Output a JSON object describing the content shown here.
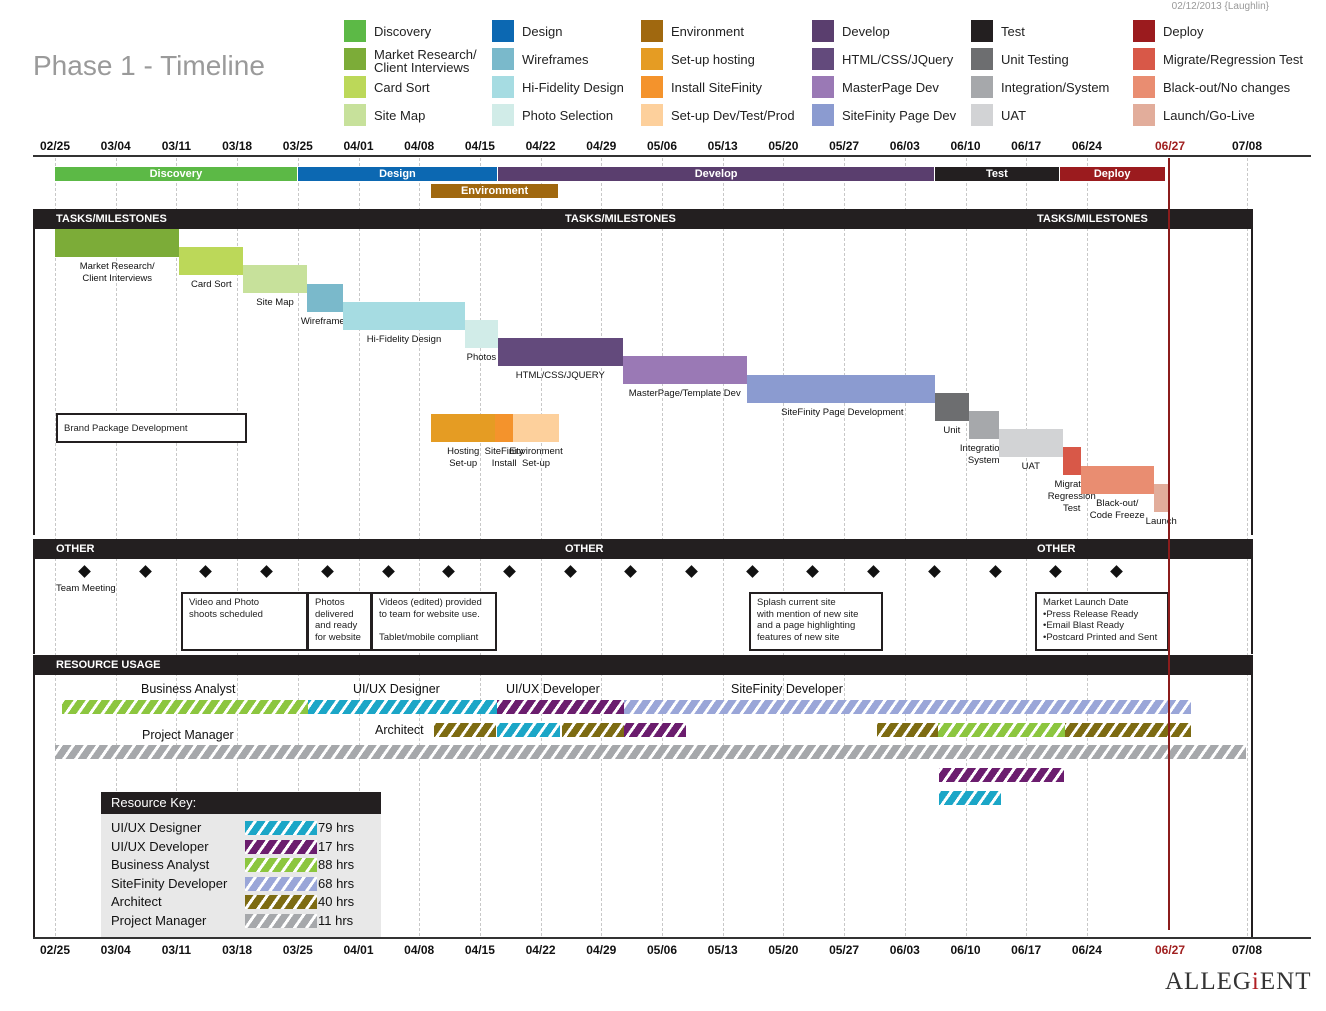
{
  "title": "Phase 1 - Timeline",
  "meta": "02/12/2013 {Laughlin}",
  "colors": {
    "discovery": "#5cb946",
    "market_research": "#7cac38",
    "card_sort": "#bcd859",
    "site_map": "#c7e19b",
    "design": "#0c68b2",
    "wireframes": "#7ab9cb",
    "hifi": "#a6dce2",
    "photo_sel": "#d1ece8",
    "environment": "#a0680f",
    "setup_hosting": "#e59c23",
    "install_sitefinity": "#f4932c",
    "setup_dev": "#fdd09c",
    "develop": "#5a3e6e",
    "html": "#634a7c",
    "masterpage": "#9a79b5",
    "sitefinity_page": "#8b9bd0",
    "test": "#231f20",
    "unit": "#6d6e70",
    "integration": "#a6a8ab",
    "uat": "#d2d3d5",
    "deploy": "#9b1b1e",
    "migrate": "#d85848",
    "blackout": "#e98d71",
    "launch": "#e2ad9b",
    "today_line": "#8b1c1c"
  },
  "legend": [
    {
      "label": "Discovery",
      "color": "discovery"
    },
    {
      "label": "Market Research/\nClient Interviews",
      "color": "market_research"
    },
    {
      "label": "Card Sort",
      "color": "card_sort"
    },
    {
      "label": "Site Map",
      "color": "site_map"
    },
    {
      "label": "Design",
      "color": "design"
    },
    {
      "label": "Wireframes",
      "color": "wireframes"
    },
    {
      "label": "Hi-Fidelity Design",
      "color": "hifi"
    },
    {
      "label": "Photo Selection",
      "color": "photo_sel"
    },
    {
      "label": "Environment",
      "color": "environment"
    },
    {
      "label": "Set-up hosting",
      "color": "setup_hosting"
    },
    {
      "label": "Install SiteFinity",
      "color": "install_sitefinity"
    },
    {
      "label": "Set-up Dev/Test/Prod",
      "color": "setup_dev"
    },
    {
      "label": "Develop",
      "color": "develop"
    },
    {
      "label": "HTML/CSS/JQuery",
      "color": "html"
    },
    {
      "label": "MasterPage Dev",
      "color": "masterpage"
    },
    {
      "label": "SiteFinity Page Dev",
      "color": "sitefinity_page"
    },
    {
      "label": "Test",
      "color": "test"
    },
    {
      "label": "Unit Testing",
      "color": "unit"
    },
    {
      "label": "Integration/System",
      "color": "integration"
    },
    {
      "label": "UAT",
      "color": "uat"
    },
    {
      "label": "Deploy",
      "color": "deploy"
    },
    {
      "label": "Migrate/Regression Test",
      "color": "migrate"
    },
    {
      "label": "Black-out/No changes",
      "color": "blackout"
    },
    {
      "label": "Launch/Go-Live",
      "color": "launch"
    }
  ],
  "dates": [
    "02/25",
    "03/04",
    "03/11",
    "03/18",
    "03/25",
    "04/01",
    "04/08",
    "04/15",
    "04/22",
    "04/29",
    "05/06",
    "05/13",
    "05/20",
    "05/27",
    "06/03",
    "06/10",
    "06/17",
    "06/24",
    "06/27",
    "07/08"
  ],
  "highlight_date": "06/27",
  "phases": [
    {
      "label": "Discovery",
      "start": 0,
      "end": 4,
      "color": "discovery",
      "row": 0
    },
    {
      "label": "Design",
      "start": 4,
      "end": 7.3,
      "color": "design",
      "row": 0
    },
    {
      "label": "Develop",
      "start": 7.3,
      "end": 14.5,
      "color": "develop",
      "row": 0
    },
    {
      "label": "Test",
      "start": 14.5,
      "end": 16.55,
      "color": "test",
      "row": 0
    },
    {
      "label": "Deploy",
      "start": 16.55,
      "end": 18.3,
      "color": "deploy",
      "row": 0
    },
    {
      "label": "Environment",
      "start": 6.2,
      "end": 8.3,
      "color": "environment",
      "row": 1
    }
  ],
  "sections": {
    "tasks": "TASKS/MILESTONES",
    "other": "OTHER",
    "resource": "RESOURCE USAGE"
  },
  "tasks": [
    {
      "label": "Market Research/\nClient Interviews",
      "start": 0,
      "end": 2.05,
      "row": 0,
      "color": "market_research"
    },
    {
      "label": "Card Sort",
      "start": 2.05,
      "end": 3.1,
      "row": 1,
      "color": "card_sort"
    },
    {
      "label": "Site Map",
      "start": 3.1,
      "end": 4.15,
      "row": 2,
      "color": "site_map"
    },
    {
      "label": "Wireframes",
      "start": 4.15,
      "end": 4.75,
      "row": 3,
      "color": "wireframes"
    },
    {
      "label": "Hi-Fidelity Design",
      "start": 4.75,
      "end": 6.75,
      "row": 4,
      "color": "hifi"
    },
    {
      "label": "Photos",
      "start": 6.75,
      "end": 7.3,
      "row": 5,
      "color": "photo_sel"
    },
    {
      "label": "HTML/CSS/JQUERY",
      "start": 7.3,
      "end": 9.35,
      "row": 6,
      "color": "html"
    },
    {
      "label": "MasterPage/Template Dev",
      "start": 9.35,
      "end": 11.4,
      "row": 7,
      "color": "masterpage"
    },
    {
      "label": "SiteFinity Page Development",
      "start": 11.4,
      "end": 14.5,
      "row": 8,
      "color": "sitefinity_page"
    },
    {
      "label": "Unit",
      "start": 14.5,
      "end": 15.05,
      "row": 9,
      "color": "unit"
    },
    {
      "label": "Integration/\nSystem",
      "start": 15.05,
      "end": 15.55,
      "row": 10,
      "color": "integration"
    },
    {
      "label": "UAT",
      "start": 15.55,
      "end": 16.6,
      "row": 11,
      "color": "uat"
    },
    {
      "label": "Migrate/\nRegression\nTest",
      "start": 16.6,
      "end": 16.9,
      "row": 12,
      "color": "migrate"
    },
    {
      "label": "Black-out/\nCode Freeze",
      "start": 16.9,
      "end": 18.1,
      "row": 13,
      "color": "blackout"
    },
    {
      "label": "Launch",
      "start": 18.1,
      "end": 18.35,
      "row": 14,
      "color": "launch"
    },
    {
      "label": "Hosting\nSet-up",
      "start": 6.2,
      "end": 7.25,
      "row": 10.7,
      "color": "setup_hosting"
    },
    {
      "label": "SiteFinity\nInstall",
      "start": 7.25,
      "end": 7.55,
      "row": 10.7,
      "color": "install_sitefinity"
    },
    {
      "label": "Environment\nSet-up",
      "start": 7.55,
      "end": 8.3,
      "row": 10.7,
      "color": "setup_dev"
    }
  ],
  "brand_package": "Brand Package Development",
  "other": {
    "team_meeting": "Team Meeting",
    "notes": [
      {
        "text": "Video and Photo\nshoots scheduled"
      },
      {
        "text": "Photos\ndelivered\nand ready\nfor website"
      },
      {
        "text": "Videos (edited) provided\nto team for website use.\n\nTablet/mobile compliant"
      },
      {
        "text": "Splash current site\nwith mention of new site\nand a page highlighting\nfeatures of new site"
      },
      {
        "text": "Market Launch Date\n•Press Release Ready\n•Email Blast Ready\n•Postcard Printed and Sent"
      }
    ]
  },
  "resource_labels": {
    "ba": "Business Analyst",
    "uiux_designer": "UI/UX Designer",
    "uiux_developer": "UI/UX Developer",
    "sitefinity_dev": "SiteFinity Developer",
    "pm": "Project Manager",
    "architect": "Architect"
  },
  "resource_key": {
    "title": "Resource Key:",
    "items": [
      {
        "label": "UI/UX Designer",
        "hours": "79 hrs",
        "color": "#1ba6c7"
      },
      {
        "label": "UI/UX Developer",
        "hours": "17 hrs",
        "color": "#6b1d6e"
      },
      {
        "label": "Business Analyst",
        "hours": "88 hrs",
        "color": "#8cc63f"
      },
      {
        "label": "SiteFinity Developer",
        "hours": "68 hrs",
        "color": "#9aa6d8"
      },
      {
        "label": "Architect",
        "hours": "40 hrs",
        "color": "#7d6b12"
      },
      {
        "label": "Project Manager",
        "hours": "11 hrs",
        "color": "#a6a8ab"
      }
    ]
  },
  "logo": {
    "main": "ALLEG",
    "accent": "i",
    "tail": "ENT"
  }
}
